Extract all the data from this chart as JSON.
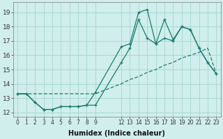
{
  "background_color": "#d0eeec",
  "grid_color": "#a8d8d4",
  "line_color": "#1a7a6e",
  "xlabel": "Humidex (Indice chaleur)",
  "xlim": [
    -0.5,
    23.5
  ],
  "ylim": [
    11.7,
    19.7
  ],
  "xticks": [
    0,
    1,
    2,
    3,
    4,
    5,
    6,
    7,
    8,
    9,
    12,
    13,
    14,
    15,
    16,
    17,
    18,
    19,
    20,
    21,
    22,
    23
  ],
  "yticks": [
    12,
    13,
    14,
    15,
    16,
    17,
    18,
    19
  ],
  "line1_x": [
    0,
    1,
    2,
    3,
    4,
    5,
    6,
    7,
    8,
    9,
    12,
    13,
    14,
    15,
    16,
    17,
    18,
    19,
    20,
    21,
    22,
    23
  ],
  "line1_y": [
    13.3,
    13.3,
    12.7,
    12.2,
    12.2,
    12.4,
    12.4,
    12.4,
    12.5,
    13.4,
    16.6,
    16.8,
    19.0,
    19.2,
    16.8,
    17.2,
    17.0,
    18.0,
    17.8,
    16.5,
    15.5,
    14.7
  ],
  "line2_x": [
    0,
    1,
    2,
    3,
    4,
    5,
    6,
    7,
    8,
    9,
    12,
    13,
    14,
    15,
    16,
    17,
    18,
    19,
    20,
    21,
    22,
    23
  ],
  "line2_y": [
    13.3,
    13.3,
    12.7,
    12.2,
    12.2,
    12.4,
    12.4,
    12.4,
    12.5,
    12.5,
    15.5,
    16.5,
    18.5,
    17.2,
    16.8,
    18.5,
    17.1,
    18.0,
    17.8,
    16.5,
    15.5,
    14.7
  ],
  "line3_x": [
    0,
    9,
    12,
    13,
    14,
    15,
    16,
    17,
    18,
    19,
    20,
    21,
    22,
    23
  ],
  "line3_y": [
    13.3,
    13.3,
    14.0,
    14.3,
    14.5,
    14.8,
    15.0,
    15.3,
    15.5,
    15.8,
    16.0,
    16.2,
    16.5,
    14.7
  ]
}
